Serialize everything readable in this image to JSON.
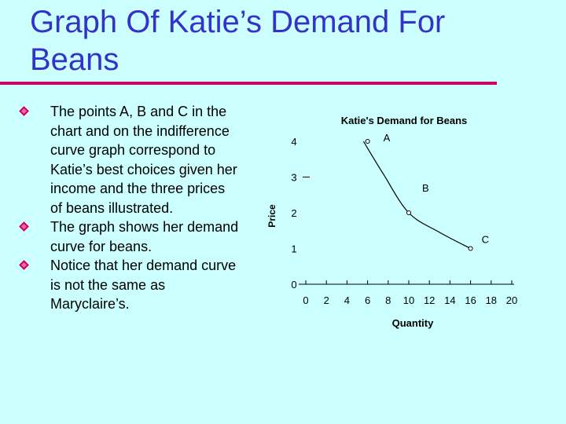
{
  "slide": {
    "title": "Graph Of Katie’s Demand For Beans",
    "bullets": [
      "The points A, B and C in the chart and on the indifference curve graph correspond to Katie’s best choices given her income and the three prices of beans illustrated.",
      "The graph shows her demand curve for beans.",
      "Notice that her demand curve is not the same as Maryclaire’s."
    ]
  },
  "colors": {
    "background": "#ccffff",
    "title": "#3333cc",
    "rule": "#cc0066",
    "bullet": "#cc0066"
  },
  "chart_data": {
    "type": "line",
    "title": "Katie's Demand for Beans",
    "xlabel": "Quantity",
    "ylabel": "Price",
    "xlim": [
      0,
      20
    ],
    "ylim": [
      0,
      4
    ],
    "x_ticks": [
      0,
      2,
      4,
      6,
      8,
      10,
      12,
      14,
      16,
      18,
      20
    ],
    "y_ticks": [
      0,
      1,
      2,
      3,
      4
    ],
    "grid": false,
    "series": [
      {
        "curve": [
          [
            5.6,
            4.0
          ],
          [
            7.5,
            3.1
          ],
          [
            10.0,
            2.0
          ],
          [
            13.0,
            1.45
          ],
          [
            16.0,
            1.0
          ]
        ],
        "points": [
          {
            "label": "A",
            "x": 6,
            "y": 4
          },
          {
            "label": "B",
            "x": 10,
            "y": 2
          },
          {
            "label": "C",
            "x": 16,
            "y": 1
          }
        ]
      }
    ]
  }
}
